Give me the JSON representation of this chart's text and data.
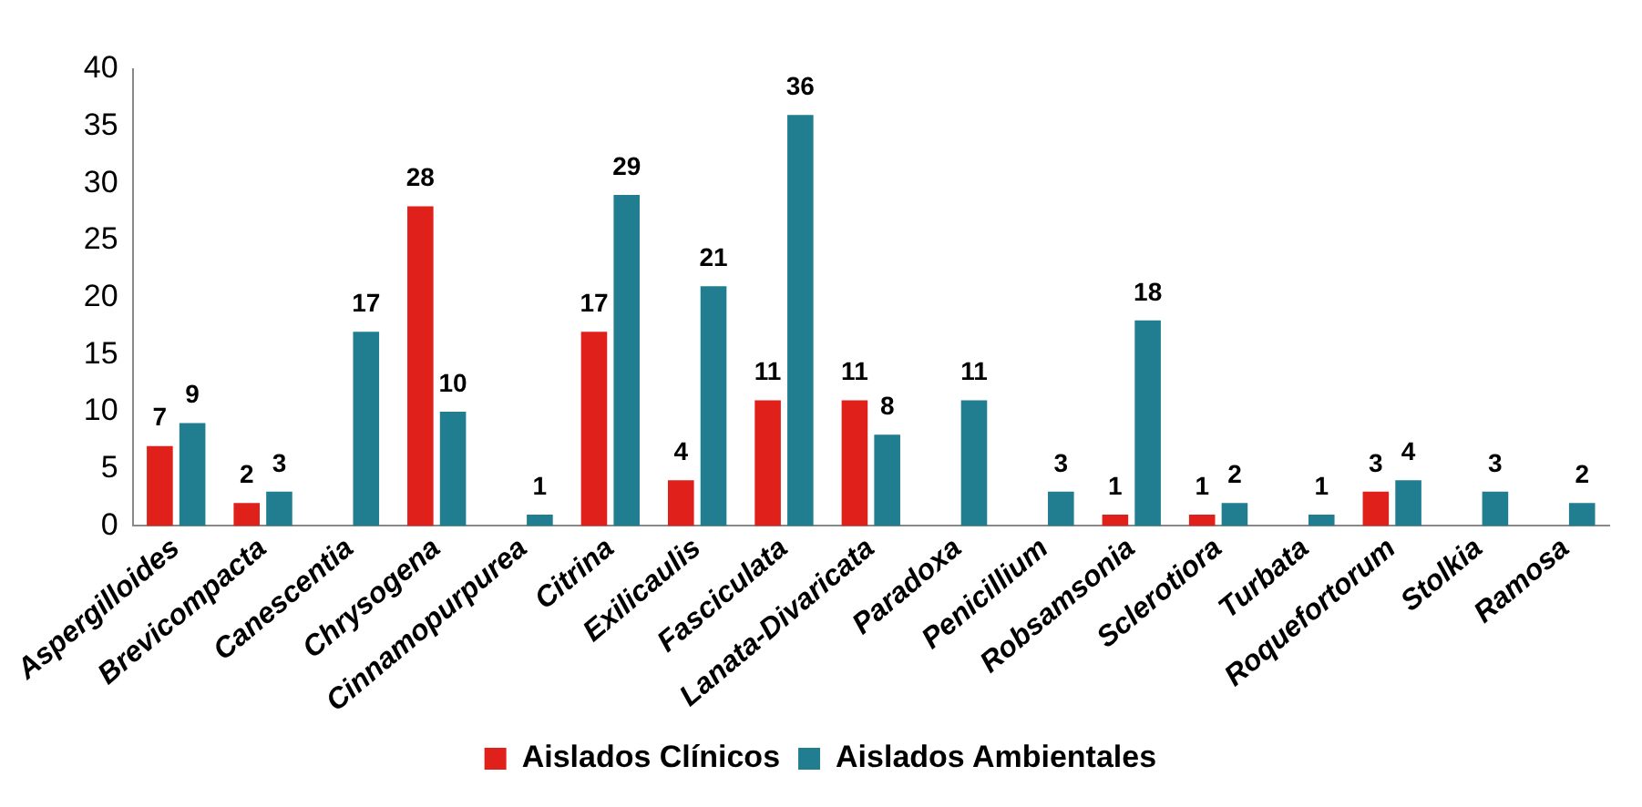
{
  "chart_data": {
    "type": "bar",
    "categories": [
      "Aspergilloides",
      "Brevicompacta",
      "Canescentia",
      "Chrysogena",
      "Cinnamopurpurea",
      "Citrina",
      "Exilicaulis",
      "Fasciculata",
      "Lanata-Divaricata",
      "Paradoxa",
      "Penicillium",
      "Robsamsonia",
      "Sclerotiora",
      "Turbata",
      "Roquefortorum",
      "Stolkia",
      "Ramosa"
    ],
    "series": [
      {
        "name": "Aislados Clínicos",
        "color": "#e0201b",
        "values": [
          7,
          2,
          null,
          28,
          null,
          17,
          4,
          11,
          11,
          null,
          null,
          1,
          1,
          null,
          3,
          null,
          null
        ]
      },
      {
        "name": "Aislados Ambientales",
        "color": "#217d90",
        "values": [
          9,
          3,
          17,
          10,
          1,
          29,
          21,
          36,
          8,
          11,
          3,
          18,
          2,
          1,
          4,
          3,
          2
        ]
      }
    ],
    "ylim": [
      0,
      40
    ],
    "yticks": [
      0,
      5,
      10,
      15,
      20,
      25,
      30,
      35,
      40
    ],
    "grid": false,
    "legend": "bottom",
    "data_labels": true
  }
}
